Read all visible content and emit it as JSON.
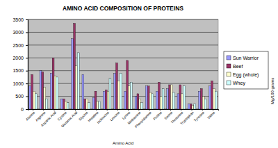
{
  "chart_data": {
    "type": "bar",
    "title": "AMINO ACID COMPOSITION OF PROTEINS",
    "x_label": "Amino Acid",
    "y_label": "Mg/100 grams",
    "categories": [
      "Alanine",
      "Arginine",
      "Aspartic Acid",
      "Cystine",
      "Glutamic Acid",
      "Glycine",
      "Histidine",
      "Isoleucine",
      "Leucine",
      "Lysine",
      "Methionine",
      "Phenylalanine",
      "Proline",
      "Serine",
      "Threonine",
      "Tryptophan",
      "Tyrosine",
      "Valine"
    ],
    "series": [
      {
        "name": "Sun Warrior",
        "color": "#9999ff",
        "values": [
          900,
          1500,
          1400,
          400,
          2750,
          1350,
          450,
          700,
          1400,
          700,
          500,
          900,
          700,
          800,
          600,
          200,
          700,
          900
        ]
      },
      {
        "name": "Beef",
        "color": "#993366",
        "values": [
          1350,
          1450,
          2000,
          400,
          3350,
          400,
          700,
          750,
          1800,
          1900,
          600,
          900,
          1050,
          950,
          950,
          200,
          800,
          1100
        ]
      },
      {
        "name": "Egg (whole)",
        "color": "#ffffcc",
        "values": [
          700,
          850,
          1300,
          300,
          1700,
          400,
          300,
          700,
          1100,
          900,
          400,
          650,
          500,
          950,
          600,
          150,
          500,
          800
        ]
      },
      {
        "name": "Whey",
        "color": "#ccffff",
        "values": [
          600,
          400,
          1250,
          250,
          2200,
          250,
          300,
          1200,
          1400,
          1050,
          250,
          600,
          800,
          650,
          900,
          200,
          400,
          700
        ]
      }
    ],
    "ylim": [
      0,
      3500
    ],
    "yticks": [
      0,
      500,
      1000,
      1500,
      2000,
      2500,
      3000,
      3500
    ],
    "grid": true,
    "legend": "right"
  }
}
